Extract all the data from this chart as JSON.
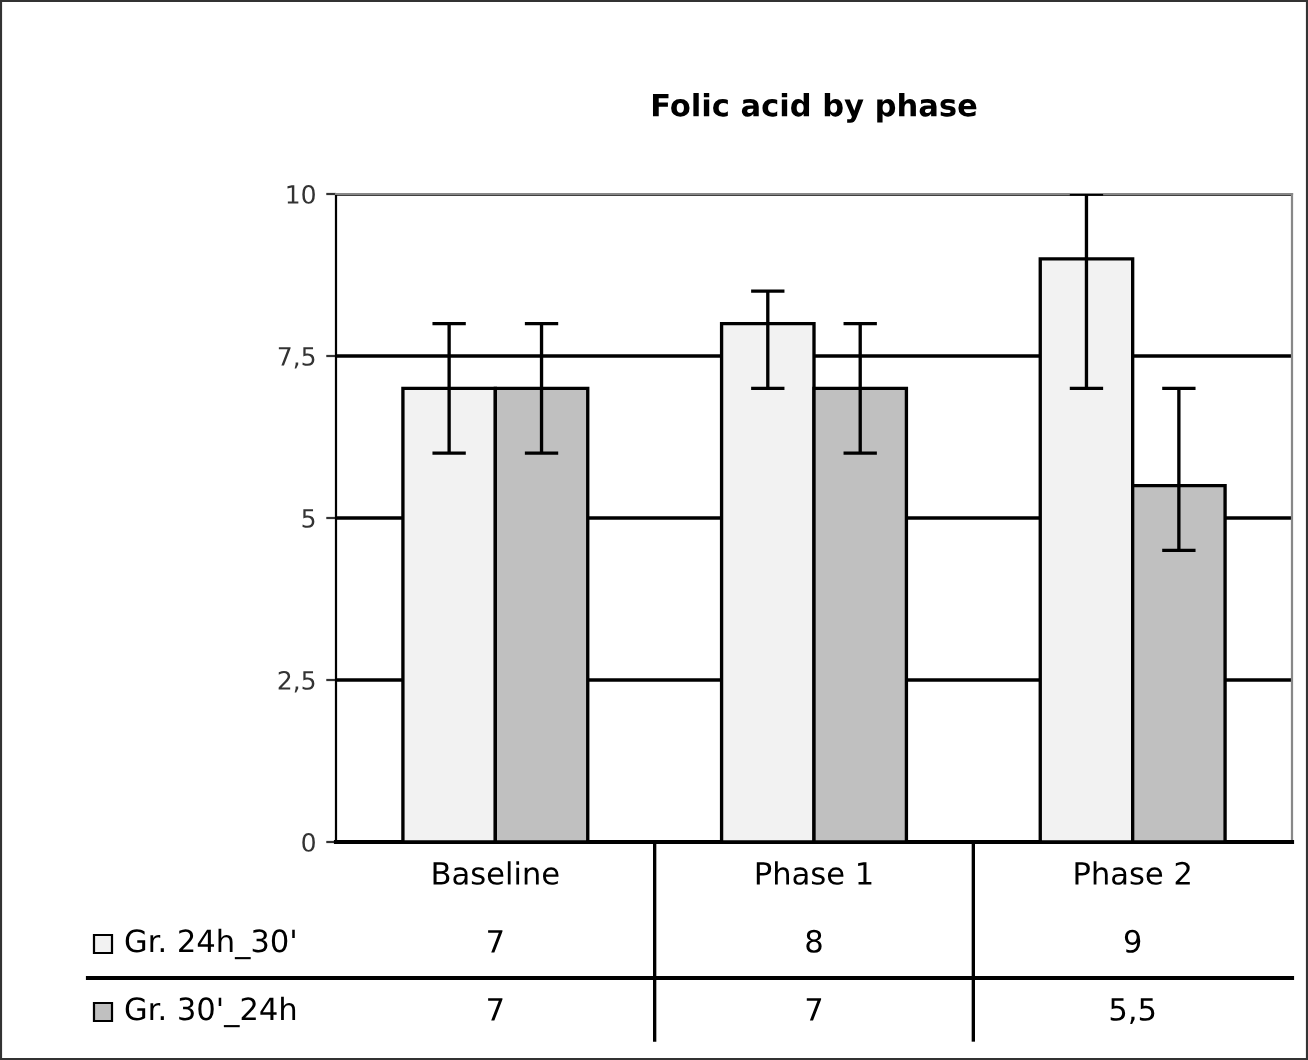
{
  "chart_data": {
    "type": "bar",
    "title": "Folic acid by phase",
    "categories": [
      "Baseline",
      "Phase 1",
      "Phase 2"
    ],
    "series": [
      {
        "name": "Gr. 24h_30'",
        "color": "#f2f2f2",
        "values": [
          7,
          8,
          9
        ],
        "value_labels": [
          "7",
          "8",
          "9"
        ],
        "errors": [
          1,
          [
            7,
            8.5
          ],
          [
            7,
            10
          ]
        ]
      },
      {
        "name": "Gr. 30'_24h",
        "color": "#c0c0c0",
        "values": [
          7,
          7,
          5.5
        ],
        "value_labels": [
          "7",
          "7",
          "5,5"
        ],
        "errors": [
          1,
          1,
          [
            4.5,
            7
          ]
        ]
      }
    ],
    "ylim": [
      0,
      10
    ],
    "yticks": [
      0,
      {
        "value": 2.5,
        "label": "2,5"
      },
      5,
      {
        "value": 7.5,
        "label": "7,5"
      },
      10
    ],
    "grid": "y",
    "legend": "bottom left"
  }
}
